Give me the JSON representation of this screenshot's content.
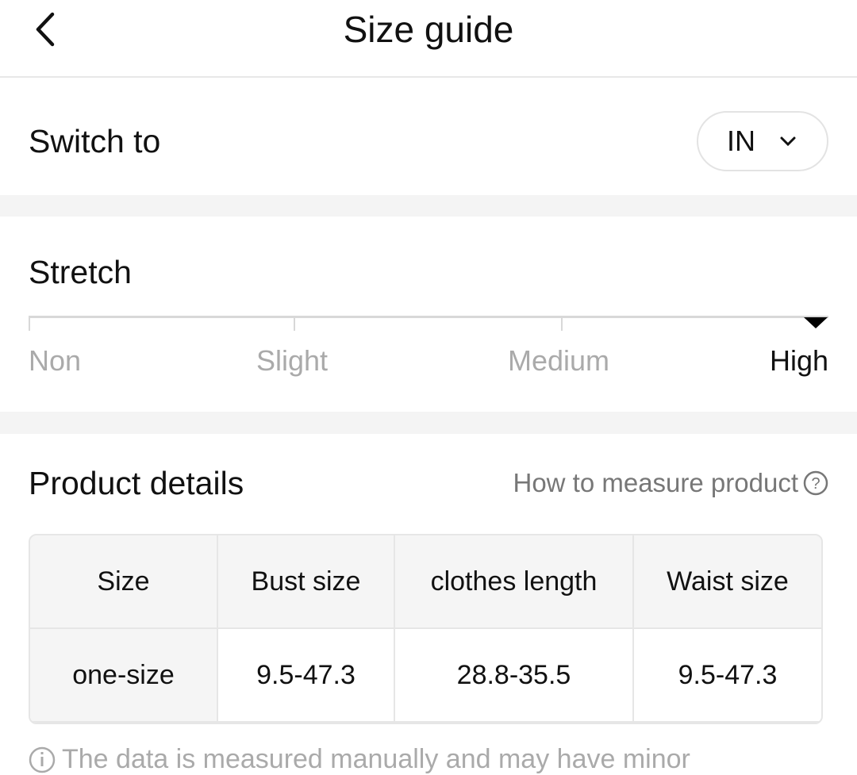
{
  "header": {
    "title": "Size guide"
  },
  "switch": {
    "label": "Switch to",
    "unit": "IN"
  },
  "stretch": {
    "title": "Stretch",
    "levels": [
      "Non",
      "Slight",
      "Medium",
      "High"
    ],
    "selected": "High"
  },
  "product": {
    "title": "Product details",
    "how_to": "How to measure product",
    "columns": [
      "Size",
      "Bust size",
      "clothes length",
      "Waist size"
    ],
    "rows": [
      [
        "one-size",
        "9.5-47.3",
        "28.8-35.5",
        "9.5-47.3"
      ]
    ]
  },
  "note": "The data is measured manually and may have minor"
}
